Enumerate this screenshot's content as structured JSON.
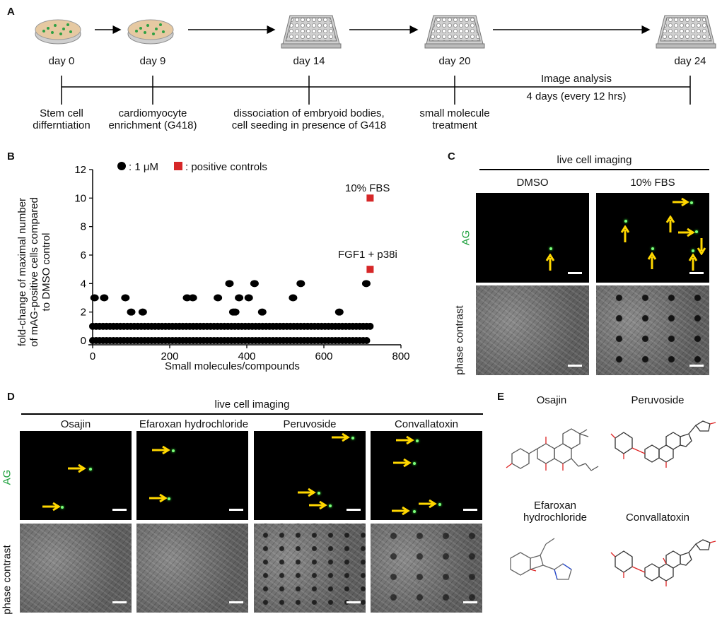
{
  "panel_letters": [
    "A",
    "B",
    "C",
    "D",
    "E"
  ],
  "panelA": {
    "days": [
      "day 0",
      "day 9",
      "day 14",
      "day 20",
      "day 24"
    ],
    "image_analysis": "Image analysis",
    "image_analysis_sub": "4 days (every 12 hrs)",
    "steps": [
      [
        "Stem cell",
        "differntiation"
      ],
      [
        "cardiomyocyte",
        "enrichment (G418)"
      ],
      [
        "dissociation of embryoid bodies,",
        "cell seeding in presence of G418"
      ],
      [
        "small molecule",
        "treatment"
      ]
    ]
  },
  "panelB": {
    "legend_dot": ": 1 μM",
    "legend_square": ": positive controls",
    "ylabel_lines": [
      "fold-change of maximal number",
      "of mAG-positive cells compared",
      "to DMSO control"
    ],
    "xlabel": "Small molecules/compounds",
    "annot_fbs": "10% FBS",
    "annot_fgf": "FGF1 + p38i",
    "colors": {
      "dot": "#000000",
      "square": "#d62728"
    }
  },
  "chart_data": {
    "type": "scatter",
    "xlabel": "Small molecules/compounds",
    "ylabel": "fold-change of maximal number of mAG-positive cells compared to DMSO control",
    "xlim": [
      0,
      800
    ],
    "ylim": [
      0,
      12
    ],
    "xticks": [
      "0",
      "200",
      "400",
      "600",
      "800"
    ],
    "yticks": [
      "0",
      "2",
      "4",
      "6",
      "8",
      "10",
      "12"
    ],
    "legend": [
      "1 μM",
      "positive controls"
    ],
    "series": [
      {
        "name": "1 μM",
        "marker": "circle",
        "bands": [
          {
            "y": 0,
            "x_from": 0,
            "x_to": 715
          },
          {
            "y": 1,
            "x_from": 0,
            "x_to": 725
          }
        ],
        "points": [
          {
            "x": 5,
            "y": 3
          },
          {
            "x": 30,
            "y": 3
          },
          {
            "x": 85,
            "y": 3
          },
          {
            "x": 100,
            "y": 2
          },
          {
            "x": 130,
            "y": 2
          },
          {
            "x": 245,
            "y": 3
          },
          {
            "x": 260,
            "y": 3
          },
          {
            "x": 325,
            "y": 3
          },
          {
            "x": 355,
            "y": 4
          },
          {
            "x": 365,
            "y": 2
          },
          {
            "x": 370,
            "y": 2
          },
          {
            "x": 380,
            "y": 3
          },
          {
            "x": 405,
            "y": 3
          },
          {
            "x": 420,
            "y": 4
          },
          {
            "x": 440,
            "y": 2
          },
          {
            "x": 520,
            "y": 3
          },
          {
            "x": 540,
            "y": 4
          },
          {
            "x": 640,
            "y": 2
          },
          {
            "x": 710,
            "y": 4
          }
        ]
      },
      {
        "name": "positive controls",
        "marker": "square",
        "points": [
          {
            "x": 720,
            "y": 10,
            "label": "10% FBS"
          },
          {
            "x": 720,
            "y": 5,
            "label": "FGF1 + p38i"
          }
        ]
      }
    ]
  },
  "panelC": {
    "header": "live cell imaging",
    "cols": [
      "DMSO",
      "10% FBS"
    ],
    "row_ag": "AG",
    "row_phase": "phase contrast",
    "colors": {
      "ag": "#1a9f3a",
      "arrow": "#ffd700"
    }
  },
  "panelD": {
    "header": "live cell imaging",
    "cols": [
      "Osajin",
      "Efaroxan hydrochloride",
      "Peruvoside",
      "Convallatoxin"
    ],
    "row_ag": "AG",
    "row_phase": "phase contrast"
  },
  "panelE": {
    "names": [
      "Osajin",
      "Peruvoside",
      "Efaroxan\nhydrochloride",
      "Convallatoxin"
    ],
    "name_lines": [
      [
        "Osajin"
      ],
      [
        "Peruvoside"
      ],
      [
        "Efaroxan",
        "hydrochloride"
      ],
      [
        "Convallatoxin"
      ]
    ]
  }
}
